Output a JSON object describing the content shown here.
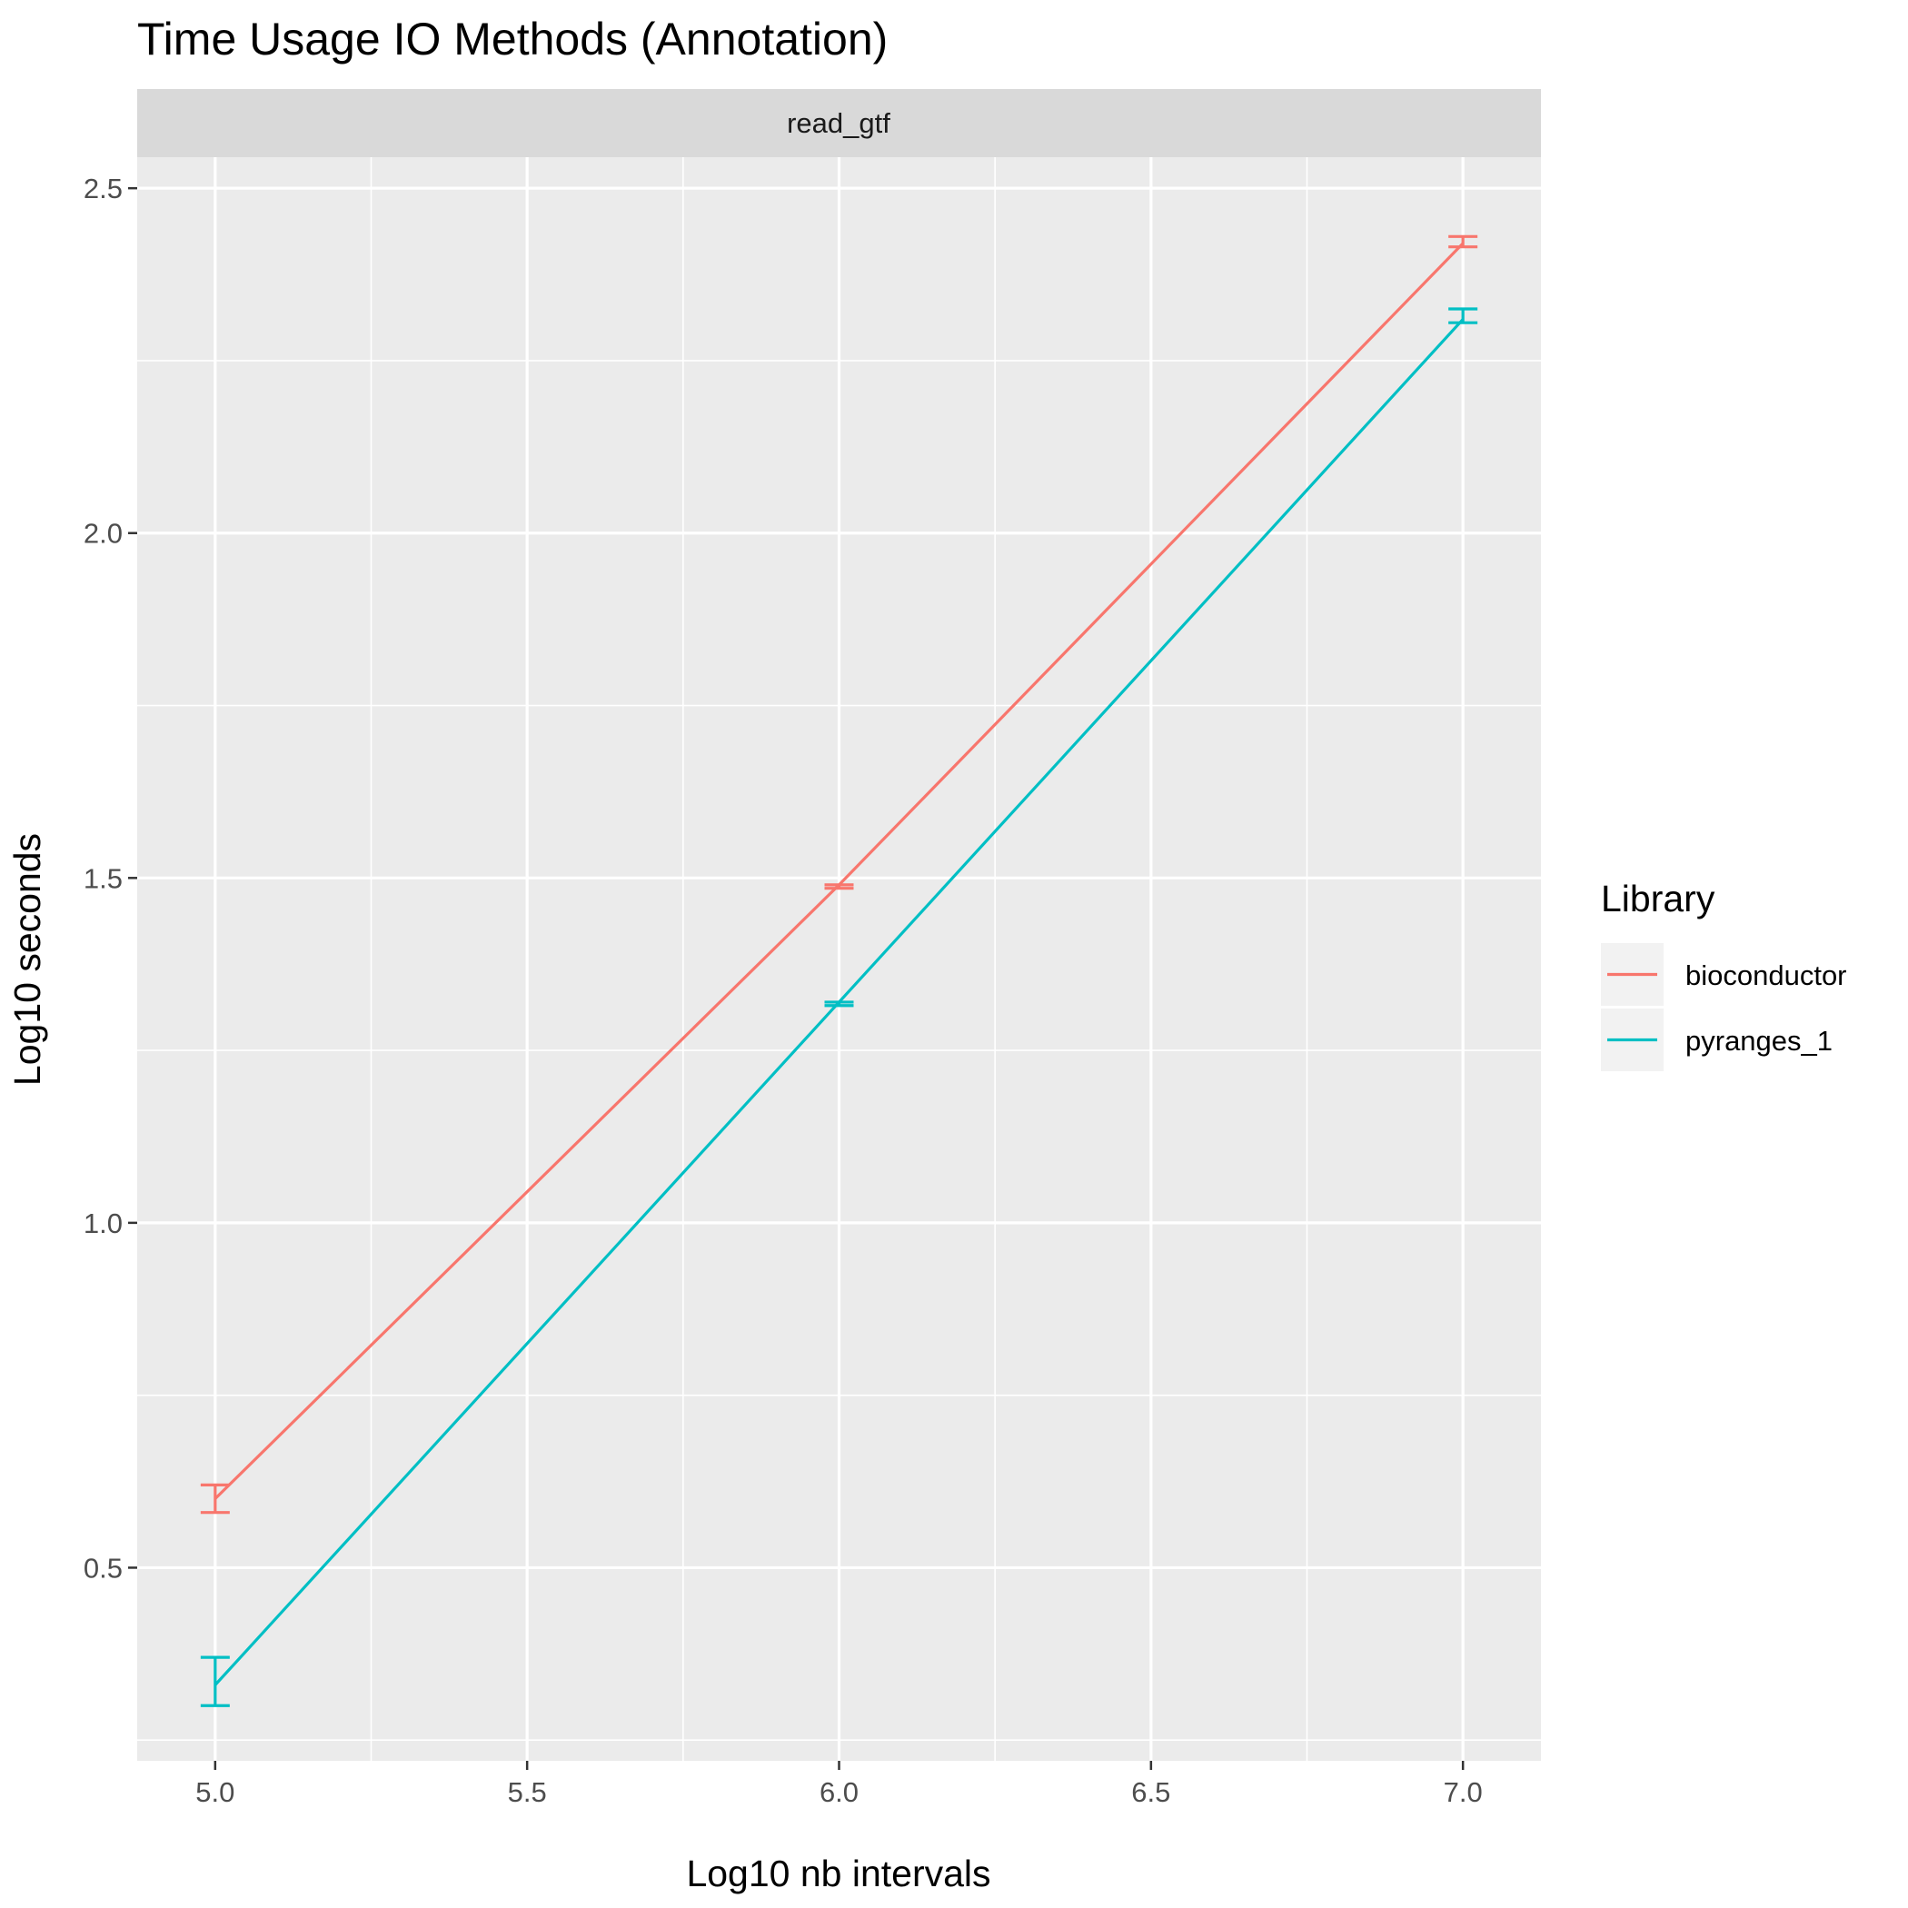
{
  "chart_data": {
    "type": "line",
    "title": "Time Usage IO Methods (Annotation)",
    "facet": "read_gtf",
    "xlabel": "Log10 nb intervals",
    "ylabel": "Log10 seconds",
    "x": [
      5.0,
      6.0,
      7.0
    ],
    "x_ticks": [
      "5.0",
      "5.5",
      "6.0",
      "6.5",
      "7.0"
    ],
    "y_ticks": [
      "0.5",
      "1.0",
      "1.5",
      "2.0",
      "2.5"
    ],
    "xlim": [
      4.875,
      7.125
    ],
    "ylim": [
      0.22,
      2.545
    ],
    "grid": true,
    "legend": {
      "title": "Library",
      "position": "right"
    },
    "series": [
      {
        "name": "bioconductor",
        "color": "#F8766D",
        "values": [
          0.6,
          1.49,
          2.42
        ],
        "error_low": [
          0.58,
          1.485,
          2.415
        ],
        "error_high": [
          0.62,
          1.49,
          2.43
        ]
      },
      {
        "name": "pyranges_1",
        "color": "#00BFC4",
        "values": [
          0.33,
          1.32,
          2.31
        ],
        "error_low": [
          0.3,
          1.315,
          2.305
        ],
        "error_high": [
          0.37,
          1.32,
          2.325
        ]
      }
    ]
  }
}
